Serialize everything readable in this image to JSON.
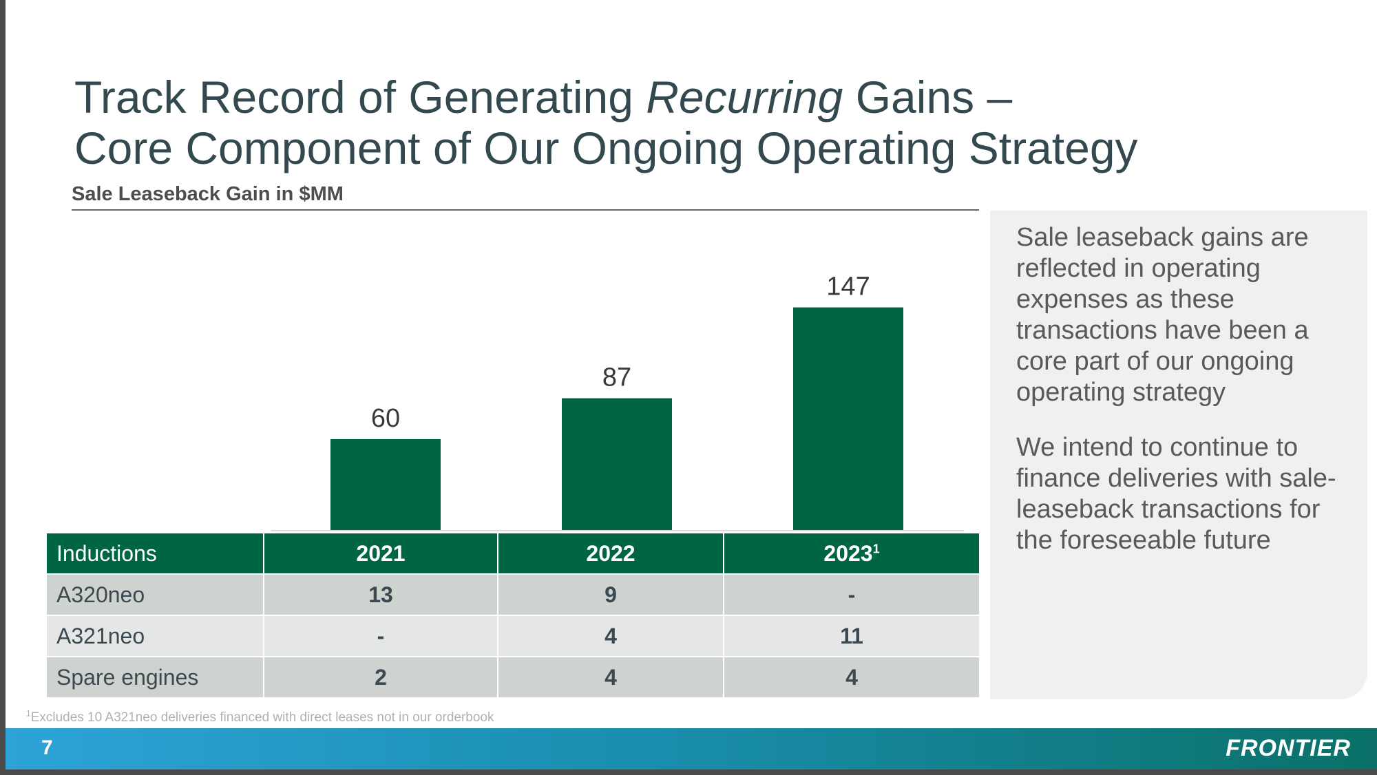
{
  "slide": {
    "title_line1_pre": "Track Record of Generating ",
    "title_line1_em": "Recurring",
    "title_line1_post": " Gains –",
    "title_line2": "Core Component of Our Ongoing Operating Strategy",
    "page_number": "7",
    "logo_text": "FRONTIER",
    "footnote_mark": "1",
    "footnote_text": "Excludes 10 A321neo deliveries financed with direct leases not in our orderbook"
  },
  "chart_data": {
    "type": "bar",
    "title": "Sale Leaseback Gain in $MM",
    "categories": [
      "2021",
      "2022",
      "2023"
    ],
    "values": [
      60,
      87,
      147
    ],
    "value_labels": [
      "60",
      "87",
      "147"
    ],
    "ylim": [
      0,
      160
    ],
    "xlabel": "",
    "ylabel": "",
    "bar_color": "#006642",
    "grid": false
  },
  "table": {
    "header_label": "Inductions",
    "columns": [
      {
        "label": "2021",
        "sup": ""
      },
      {
        "label": "2022",
        "sup": ""
      },
      {
        "label": "2023",
        "sup": "1"
      }
    ],
    "rows": [
      {
        "label": "A320neo",
        "values": [
          "13",
          "9",
          "-"
        ]
      },
      {
        "label": "A321neo",
        "values": [
          "-",
          "4",
          "11"
        ]
      },
      {
        "label": "Spare engines",
        "values": [
          "2",
          "4",
          "4"
        ]
      }
    ]
  },
  "side_panel": {
    "paragraph1": "Sale leaseback gains are reflected in operating expenses as these transactions have been a core part of our ongoing operating strategy",
    "paragraph2": "We intend to continue to finance deliveries with sale-leaseback transactions for the foreseeable future"
  },
  "colors": {
    "accent_green": "#006642",
    "title_text": "#33494f",
    "footer_start": "#2ea3d8",
    "footer_end": "#0a7068"
  }
}
